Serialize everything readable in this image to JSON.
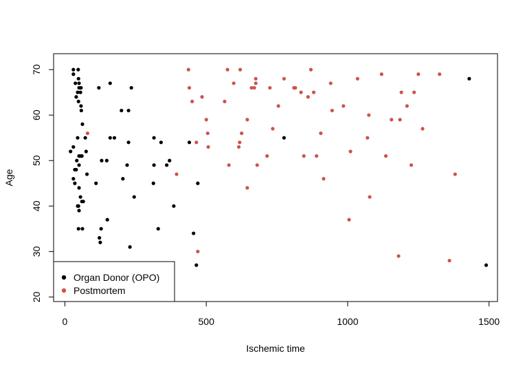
{
  "chart_data": {
    "type": "scatter",
    "title": "",
    "xlabel": "Ischemic time",
    "ylabel": "Age",
    "xlim": [
      -40,
      1530
    ],
    "ylim": [
      19,
      73.5
    ],
    "xticks": [
      0,
      500,
      1000,
      1500
    ],
    "yticks": [
      20,
      30,
      40,
      50,
      60,
      70
    ],
    "grid": false,
    "legend": {
      "position": "bottom-left",
      "entries": [
        {
          "name": "Organ Donor (OPO)",
          "color": "#000000"
        },
        {
          "name": "Postmortem",
          "color": "#CD534C"
        }
      ]
    },
    "series": [
      {
        "name": "Organ Donor (OPO)",
        "color": "#000000",
        "points": [
          [
            30,
            70
          ],
          [
            30,
            69
          ],
          [
            37,
            67
          ],
          [
            40,
            64
          ],
          [
            45,
            65
          ],
          [
            47,
            70
          ],
          [
            48,
            68
          ],
          [
            48,
            63
          ],
          [
            50,
            66
          ],
          [
            50,
            67
          ],
          [
            55,
            65
          ],
          [
            57,
            66
          ],
          [
            57,
            62
          ],
          [
            58,
            61
          ],
          [
            62,
            58
          ],
          [
            20,
            52
          ],
          [
            30,
            53
          ],
          [
            30,
            46
          ],
          [
            35,
            45
          ],
          [
            35,
            48
          ],
          [
            40,
            48
          ],
          [
            42,
            50
          ],
          [
            45,
            55
          ],
          [
            50,
            51
          ],
          [
            50,
            49
          ],
          [
            55,
            51
          ],
          [
            60,
            51
          ],
          [
            75,
            52
          ],
          [
            72,
            55
          ],
          [
            78,
            47
          ],
          [
            50,
            44
          ],
          [
            45,
            40
          ],
          [
            48,
            40
          ],
          [
            50,
            39
          ],
          [
            55,
            42
          ],
          [
            60,
            41
          ],
          [
            65,
            41
          ],
          [
            48,
            35
          ],
          [
            62,
            35
          ],
          [
            120,
            66
          ],
          [
            160,
            67
          ],
          [
            160,
            55
          ],
          [
            175,
            55
          ],
          [
            200,
            61
          ],
          [
            225,
            61
          ],
          [
            235,
            66
          ],
          [
            130,
            50
          ],
          [
            148,
            50
          ],
          [
            225,
            54
          ],
          [
            220,
            49
          ],
          [
            205,
            46
          ],
          [
            110,
            45
          ],
          [
            128,
            35
          ],
          [
            150,
            37
          ],
          [
            122,
            33
          ],
          [
            125,
            32
          ],
          [
            230,
            31
          ],
          [
            245,
            42
          ],
          [
            315,
            55
          ],
          [
            315,
            49
          ],
          [
            313,
            45
          ],
          [
            340,
            54
          ],
          [
            360,
            49
          ],
          [
            370,
            50
          ],
          [
            385,
            40
          ],
          [
            330,
            35
          ],
          [
            440,
            54
          ],
          [
            455,
            34
          ],
          [
            470,
            45
          ],
          [
            465,
            27
          ],
          [
            775,
            55
          ],
          [
            1430,
            68
          ],
          [
            1490,
            27
          ]
        ]
      },
      {
        "name": "Postmortem",
        "color": "#CD534C",
        "points": [
          [
            437,
            70
          ],
          [
            440,
            66
          ],
          [
            450,
            63
          ],
          [
            485,
            64
          ],
          [
            500,
            59
          ],
          [
            505,
            56
          ],
          [
            507,
            53
          ],
          [
            465,
            54
          ],
          [
            395,
            47
          ],
          [
            470,
            30
          ],
          [
            80,
            56
          ],
          [
            565,
            63
          ],
          [
            575,
            70
          ],
          [
            580,
            49
          ],
          [
            597,
            67
          ],
          [
            615,
            53
          ],
          [
            618,
            54
          ],
          [
            620,
            70
          ],
          [
            625,
            56
          ],
          [
            645,
            59
          ],
          [
            645,
            44
          ],
          [
            660,
            66
          ],
          [
            670,
            66
          ],
          [
            675,
            68
          ],
          [
            675,
            67
          ],
          [
            680,
            49
          ],
          [
            715,
            51
          ],
          [
            725,
            66
          ],
          [
            735,
            57
          ],
          [
            755,
            62
          ],
          [
            775,
            68
          ],
          [
            810,
            66
          ],
          [
            815,
            66
          ],
          [
            835,
            65
          ],
          [
            845,
            51
          ],
          [
            860,
            64
          ],
          [
            870,
            70
          ],
          [
            880,
            65
          ],
          [
            890,
            51
          ],
          [
            905,
            56
          ],
          [
            915,
            46
          ],
          [
            940,
            67
          ],
          [
            945,
            61
          ],
          [
            985,
            62
          ],
          [
            1005,
            37
          ],
          [
            1010,
            52
          ],
          [
            1035,
            68
          ],
          [
            1070,
            55
          ],
          [
            1075,
            60
          ],
          [
            1078,
            42
          ],
          [
            1120,
            69
          ],
          [
            1135,
            51
          ],
          [
            1155,
            59
          ],
          [
            1180,
            29
          ],
          [
            1185,
            59
          ],
          [
            1190,
            65
          ],
          [
            1210,
            62
          ],
          [
            1225,
            49
          ],
          [
            1235,
            65
          ],
          [
            1250,
            69
          ],
          [
            1265,
            57
          ],
          [
            1325,
            69
          ],
          [
            1360,
            28
          ],
          [
            1380,
            47
          ]
        ]
      }
    ]
  }
}
